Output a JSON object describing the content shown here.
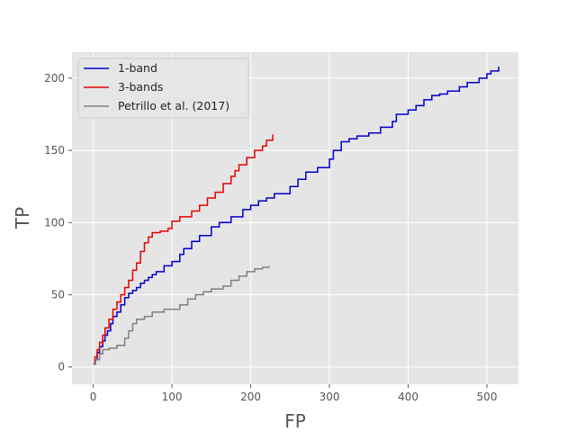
{
  "chart_data": {
    "type": "line",
    "title": "",
    "xlabel": "FP",
    "ylabel": "TP",
    "xlim": [
      -27,
      540
    ],
    "ylim": [
      -12,
      218
    ],
    "xticks": [
      0,
      100,
      200,
      300,
      400,
      500
    ],
    "yticks": [
      0,
      50,
      100,
      150,
      200
    ],
    "grid": true,
    "legend_position": "top-left",
    "series": [
      {
        "name": "1-band",
        "color": "#0000cc",
        "points": [
          [
            0,
            2
          ],
          [
            2,
            5
          ],
          [
            5,
            10
          ],
          [
            8,
            14
          ],
          [
            12,
            18
          ],
          [
            15,
            22
          ],
          [
            18,
            25
          ],
          [
            22,
            30
          ],
          [
            25,
            35
          ],
          [
            30,
            38
          ],
          [
            35,
            43
          ],
          [
            40,
            48
          ],
          [
            45,
            51
          ],
          [
            50,
            53
          ],
          [
            55,
            55
          ],
          [
            60,
            58
          ],
          [
            65,
            60
          ],
          [
            70,
            62
          ],
          [
            75,
            64
          ],
          [
            80,
            66
          ],
          [
            90,
            70
          ],
          [
            100,
            73
          ],
          [
            110,
            78
          ],
          [
            115,
            82
          ],
          [
            125,
            87
          ],
          [
            135,
            91
          ],
          [
            150,
            97
          ],
          [
            160,
            100
          ],
          [
            175,
            104
          ],
          [
            190,
            109
          ],
          [
            200,
            112
          ],
          [
            210,
            115
          ],
          [
            220,
            117
          ],
          [
            230,
            120
          ],
          [
            250,
            125
          ],
          [
            260,
            130
          ],
          [
            270,
            135
          ],
          [
            285,
            138
          ],
          [
            300,
            144
          ],
          [
            305,
            150
          ],
          [
            315,
            156
          ],
          [
            325,
            158
          ],
          [
            335,
            160
          ],
          [
            350,
            162
          ],
          [
            365,
            166
          ],
          [
            380,
            170
          ],
          [
            385,
            175
          ],
          [
            400,
            178
          ],
          [
            410,
            181
          ],
          [
            420,
            185
          ],
          [
            430,
            188
          ],
          [
            440,
            189
          ],
          [
            450,
            191
          ],
          [
            465,
            194
          ],
          [
            475,
            197
          ],
          [
            490,
            200
          ],
          [
            500,
            203
          ],
          [
            505,
            205
          ],
          [
            515,
            208
          ]
        ]
      },
      {
        "name": "3-bands",
        "color": "#e60000",
        "points": [
          [
            0,
            2
          ],
          [
            2,
            7
          ],
          [
            5,
            12
          ],
          [
            8,
            17
          ],
          [
            12,
            22
          ],
          [
            15,
            27
          ],
          [
            20,
            33
          ],
          [
            25,
            40
          ],
          [
            30,
            45
          ],
          [
            35,
            50
          ],
          [
            40,
            55
          ],
          [
            45,
            60
          ],
          [
            50,
            67
          ],
          [
            55,
            72
          ],
          [
            60,
            80
          ],
          [
            65,
            86
          ],
          [
            70,
            90
          ],
          [
            75,
            93
          ],
          [
            85,
            94
          ],
          [
            95,
            96
          ],
          [
            100,
            101
          ],
          [
            110,
            104
          ],
          [
            125,
            108
          ],
          [
            135,
            112
          ],
          [
            145,
            117
          ],
          [
            155,
            121
          ],
          [
            165,
            127
          ],
          [
            175,
            132
          ],
          [
            180,
            136
          ],
          [
            185,
            140
          ],
          [
            195,
            145
          ],
          [
            205,
            150
          ],
          [
            215,
            153
          ],
          [
            220,
            157
          ],
          [
            228,
            161
          ]
        ]
      },
      {
        "name": "Petrillo et al. (2017)",
        "color": "#808080",
        "points": [
          [
            0,
            2
          ],
          [
            3,
            5
          ],
          [
            8,
            9
          ],
          [
            12,
            12
          ],
          [
            20,
            13
          ],
          [
            30,
            15
          ],
          [
            40,
            20
          ],
          [
            45,
            25
          ],
          [
            50,
            30
          ],
          [
            55,
            33
          ],
          [
            65,
            35
          ],
          [
            75,
            38
          ],
          [
            90,
            40
          ],
          [
            110,
            43
          ],
          [
            120,
            47
          ],
          [
            130,
            50
          ],
          [
            140,
            52
          ],
          [
            150,
            54
          ],
          [
            165,
            56
          ],
          [
            175,
            60
          ],
          [
            185,
            63
          ],
          [
            195,
            66
          ],
          [
            205,
            68
          ],
          [
            215,
            69
          ],
          [
            223,
            70
          ]
        ]
      }
    ]
  }
}
